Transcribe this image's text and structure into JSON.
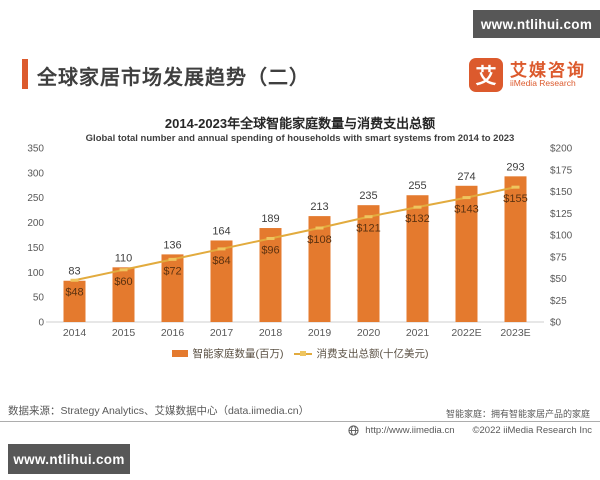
{
  "watermarks": {
    "top_right": "www.ntlihui.com",
    "bottom_left": "www.ntlihui.com"
  },
  "header": {
    "title": "全球家居市场发展趋势（二）",
    "logo": {
      "icon_glyph": "艾",
      "brand_cn": "艾媒咨询",
      "brand_en": "iiMedia Research"
    }
  },
  "chart_data": {
    "type": "bar+line",
    "title": "2014-2023年全球智能家庭数量与消费支出总额",
    "subtitle": "Global total number and  annual spending of households with smart systems from 2014 to 2023",
    "categories": [
      "2014",
      "2015",
      "2016",
      "2017",
      "2018",
      "2019",
      "2020",
      "2021",
      "2022E",
      "2023E"
    ],
    "series": [
      {
        "name": "智能家庭数量(百万)",
        "type": "bar",
        "axis": "left",
        "values": [
          83,
          110,
          136,
          164,
          189,
          213,
          235,
          255,
          274,
          293
        ],
        "color": "#E47A2E",
        "label_color": "#3F3F3F"
      },
      {
        "name": "消费支出总额(十亿美元)",
        "type": "line",
        "axis": "right",
        "values": [
          48,
          60,
          72,
          84,
          96,
          108,
          121,
          132,
          143,
          155
        ],
        "point_labels": [
          "$48",
          "$60",
          "$72",
          "$84",
          "$96",
          "$108",
          "$121",
          "$132",
          "$143",
          "$155"
        ],
        "color": "#E2AB3E",
        "marker_color": "#EFC55F",
        "label_color": "#5C3210"
      }
    ],
    "left_axis": {
      "min": 0,
      "max": 350,
      "step": 50,
      "ticks_top_to_bottom": [
        "350",
        "300",
        "250",
        "200",
        "150",
        "100",
        "50",
        "0"
      ]
    },
    "right_axis": {
      "min": 0,
      "max": 200,
      "step": 25,
      "ticks_top_to_bottom": [
        "$200",
        "$175",
        "$150",
        "$125",
        "$100",
        "$75",
        "$50",
        "$25",
        "$0"
      ]
    },
    "grid": false,
    "legend_position": "bottom",
    "axis_text_color": "#595959",
    "axis_line_color": "#CFCFCF"
  },
  "footer": {
    "source": "数据来源：Strategy Analytics、艾媒数据中心（data.iimedia.cn）",
    "note": "智能家庭：拥有智能家居产品的家庭",
    "website": "http://www.iimedia.cn",
    "copyright": "©2022  iiMedia Research  Inc"
  }
}
